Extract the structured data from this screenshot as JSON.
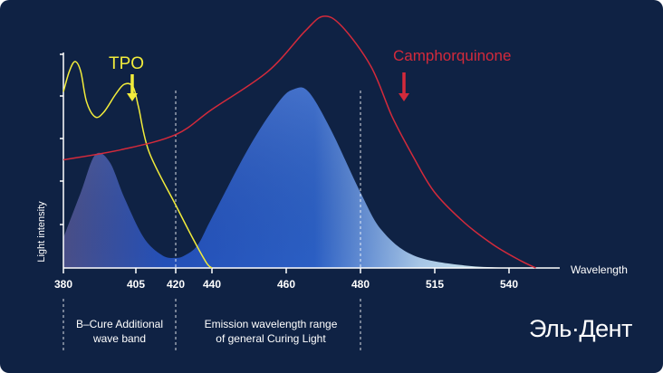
{
  "chart_data": {
    "type": "area",
    "xlabel": "Wavelength",
    "ylabel": "Light intensity",
    "x_ticks": [
      380,
      405,
      420,
      440,
      460,
      480,
      515,
      540
    ],
    "series": [
      {
        "name": "TPO",
        "kind": "line",
        "color": "#f2ec3b",
        "points": [
          [
            380,
            0.7
          ],
          [
            382,
            0.78
          ],
          [
            384,
            0.82
          ],
          [
            386,
            0.78
          ],
          [
            388,
            0.66
          ],
          [
            391,
            0.6
          ],
          [
            394,
            0.62
          ],
          [
            398,
            0.69
          ],
          [
            401,
            0.73
          ],
          [
            404,
            0.72
          ],
          [
            406,
            0.64
          ],
          [
            410,
            0.46
          ],
          [
            420,
            0.25
          ],
          [
            430,
            0.11
          ],
          [
            437,
            0.02
          ],
          [
            440,
            0.0
          ]
        ]
      },
      {
        "name": "Camphorquinone",
        "kind": "line",
        "color": "#d32a3b",
        "points": [
          [
            380,
            0.43
          ],
          [
            400,
            0.47
          ],
          [
            420,
            0.53
          ],
          [
            440,
            0.63
          ],
          [
            455,
            0.78
          ],
          [
            465,
            0.94
          ],
          [
            470,
            1.0
          ],
          [
            475,
            0.96
          ],
          [
            485,
            0.8
          ],
          [
            495,
            0.6
          ],
          [
            505,
            0.44
          ],
          [
            515,
            0.3
          ],
          [
            525,
            0.18
          ],
          [
            535,
            0.09
          ],
          [
            545,
            0.03
          ],
          [
            552,
            0.0
          ]
        ]
      },
      {
        "name": "",
        "kind": "area",
        "points": [
          [
            380,
            0.12
          ],
          [
            386,
            0.3
          ],
          [
            391,
            0.45
          ],
          [
            396,
            0.42
          ],
          [
            401,
            0.28
          ],
          [
            408,
            0.12
          ],
          [
            415,
            0.05
          ],
          [
            420,
            0.04
          ],
          [
            425,
            0.05
          ],
          [
            432,
            0.09
          ],
          [
            440,
            0.2
          ],
          [
            450,
            0.48
          ],
          [
            458,
            0.66
          ],
          [
            462,
            0.71
          ],
          [
            466,
            0.7
          ],
          [
            472,
            0.55
          ],
          [
            480,
            0.3
          ],
          [
            490,
            0.15
          ],
          [
            505,
            0.05
          ],
          [
            525,
            0.01
          ],
          [
            545,
            0.0
          ]
        ]
      }
    ],
    "labels": [
      {
        "text": "TPO",
        "color": "#f2ec3b",
        "arrow_color": "#f2ec3b"
      },
      {
        "text": "Camphorquinone",
        "color": "#d32a3b",
        "arrow_color": "#d32a3b"
      }
    ],
    "bands": [
      {
        "name": "B-Cure Additional wave band",
        "from": 380,
        "to": 420,
        "label_lines": [
          "B–Cure Additional",
          "wave band"
        ]
      },
      {
        "name": "Emission wavelength range of general Curing Light",
        "from": 420,
        "to": 480,
        "label_lines": [
          "Emission wavelength range",
          "of general Curing Light"
        ]
      }
    ],
    "grid": false
  },
  "brand": {
    "text": "Эль·Дент"
  },
  "colors": {
    "background": "#0f2244",
    "axis": "#ffffff"
  }
}
